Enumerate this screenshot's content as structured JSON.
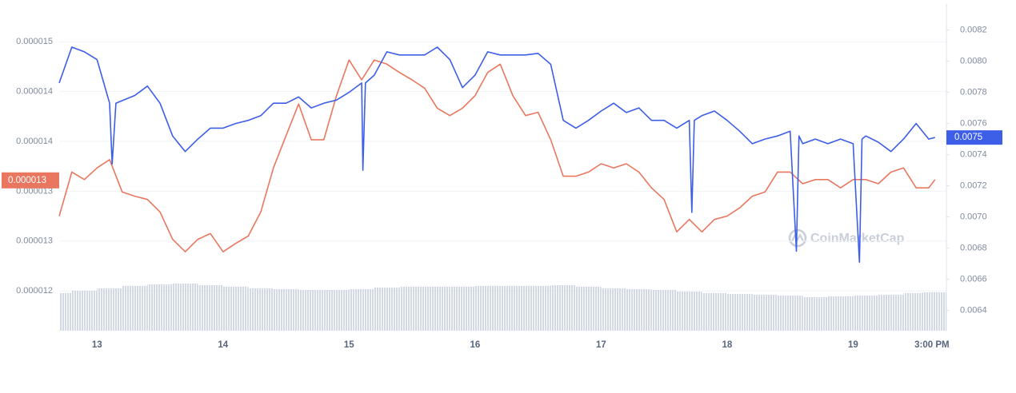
{
  "chart_data": {
    "type": "line",
    "xlim": [
      12.7,
      19.74
    ],
    "xticks": [
      13,
      14,
      15,
      16,
      17,
      18,
      19,
      {
        "value": 19.625,
        "label": "3:00 PM"
      }
    ],
    "ylim": [
      1.152e-05,
      1.531e-05
    ],
    "yticks": [
      1.5e-05,
      {
        "value": 1.44e-05,
        "label": "0.000014"
      },
      {
        "value": 1.38e-05,
        "label": "0.000014"
      },
      {
        "value": 1.32e-05,
        "label": "0.000013"
      },
      {
        "value": 1.26e-05,
        "label": "0.000013"
      },
      1.2e-05
    ],
    "y2lim": [
      0.00627,
      0.00829
    ],
    "y2ticks": [
      0.0082,
      {
        "value": 0.008,
        "label": "0.0080"
      },
      0.0078,
      0.0076,
      0.0074,
      0.0072,
      {
        "value": 0.007,
        "label": "0.0070"
      },
      0.0068,
      0.0066,
      0.0064
    ],
    "grid": true,
    "watermark": "CoinMarketCap",
    "series": [
      {
        "color": "#e9775f",
        "last_label": "0.000013",
        "x": [
          12.7,
          12.8,
          12.9,
          13.0,
          13.1,
          13.2,
          13.3,
          13.4,
          13.5,
          13.6,
          13.7,
          13.8,
          13.9,
          14.0,
          14.1,
          14.2,
          14.3,
          14.4,
          14.5,
          14.6,
          14.7,
          14.8,
          14.9,
          15.0,
          15.1,
          15.2,
          15.3,
          15.4,
          15.5,
          15.6,
          15.7,
          15.8,
          15.9,
          16.0,
          16.1,
          16.2,
          16.3,
          16.4,
          16.5,
          16.6,
          16.7,
          16.8,
          16.9,
          17.0,
          17.1,
          17.2,
          17.3,
          17.4,
          17.5,
          17.6,
          17.7,
          17.8,
          17.9,
          18.0,
          18.1,
          18.2,
          18.3,
          18.4,
          18.5,
          18.6,
          18.7,
          18.8,
          18.9,
          19.0,
          19.1,
          19.2,
          19.3,
          19.4,
          19.5,
          19.6,
          19.65
        ],
        "values": [
          1.29e-05,
          1.343e-05,
          1.334e-05,
          1.348e-05,
          1.358e-05,
          1.319e-05,
          1.314e-05,
          1.31e-05,
          1.295e-05,
          1.262e-05,
          1.247e-05,
          1.262e-05,
          1.269e-05,
          1.247e-05,
          1.257e-05,
          1.266e-05,
          1.295e-05,
          1.348e-05,
          1.387e-05,
          1.425e-05,
          1.382e-05,
          1.382e-05,
          1.435e-05,
          1.478e-05,
          1.454e-05,
          1.478e-05,
          1.473e-05,
          1.463e-05,
          1.454e-05,
          1.444e-05,
          1.42e-05,
          1.411e-05,
          1.42e-05,
          1.435e-05,
          1.463e-05,
          1.473e-05,
          1.435e-05,
          1.411e-05,
          1.415e-05,
          1.382e-05,
          1.338e-05,
          1.338e-05,
          1.343e-05,
          1.353e-05,
          1.348e-05,
          1.353e-05,
          1.343e-05,
          1.324e-05,
          1.31e-05,
          1.271e-05,
          1.286e-05,
          1.271e-05,
          1.286e-05,
          1.29e-05,
          1.3e-05,
          1.314e-05,
          1.319e-05,
          1.343e-05,
          1.343e-05,
          1.329e-05,
          1.334e-05,
          1.334e-05,
          1.324e-05,
          1.334e-05,
          1.334e-05,
          1.329e-05,
          1.343e-05,
          1.348e-05,
          1.324e-05,
          1.324e-05,
          1.334e-05
        ]
      },
      {
        "color": "#3d5ee6",
        "axis": "y2",
        "last_label": "0.0075",
        "x": [
          12.7,
          12.8,
          12.9,
          13.0,
          13.1,
          13.12,
          13.15,
          13.3,
          13.4,
          13.5,
          13.6,
          13.7,
          13.8,
          13.9,
          14.0,
          14.1,
          14.2,
          14.3,
          14.4,
          14.5,
          14.6,
          14.7,
          14.8,
          14.9,
          15.0,
          15.1,
          15.11,
          15.13,
          15.2,
          15.3,
          15.4,
          15.5,
          15.6,
          15.7,
          15.8,
          15.9,
          16.0,
          16.1,
          16.2,
          16.3,
          16.4,
          16.5,
          16.6,
          16.7,
          16.8,
          16.9,
          17.0,
          17.1,
          17.2,
          17.3,
          17.4,
          17.5,
          17.6,
          17.7,
          17.72,
          17.74,
          17.8,
          17.9,
          18.0,
          18.1,
          18.2,
          18.3,
          18.4,
          18.5,
          18.55,
          18.57,
          18.6,
          18.7,
          18.8,
          18.9,
          19.0,
          19.05,
          19.07,
          19.1,
          19.2,
          19.3,
          19.4,
          19.5,
          19.6,
          19.65
        ],
        "values": [
          0.00786,
          0.00809,
          0.00806,
          0.00801,
          0.00773,
          0.00734,
          0.00773,
          0.00778,
          0.00784,
          0.00773,
          0.00752,
          0.00742,
          0.0075,
          0.00757,
          0.00757,
          0.0076,
          0.00762,
          0.00765,
          0.00773,
          0.00773,
          0.00777,
          0.0077,
          0.00773,
          0.00775,
          0.0078,
          0.00786,
          0.0073,
          0.00786,
          0.00791,
          0.00806,
          0.00804,
          0.00804,
          0.00804,
          0.00809,
          0.00801,
          0.00783,
          0.00791,
          0.00806,
          0.00804,
          0.00804,
          0.00804,
          0.00805,
          0.00798,
          0.00762,
          0.00757,
          0.00762,
          0.00768,
          0.00773,
          0.00767,
          0.0077,
          0.00762,
          0.00762,
          0.00757,
          0.00762,
          0.00703,
          0.00762,
          0.00765,
          0.00768,
          0.00762,
          0.00755,
          0.00747,
          0.0075,
          0.00752,
          0.00755,
          0.00678,
          0.00752,
          0.00747,
          0.0075,
          0.00747,
          0.0075,
          0.00747,
          0.00671,
          0.0075,
          0.00752,
          0.00748,
          0.00742,
          0.0075,
          0.0076,
          0.0075,
          0.00751
        ]
      }
    ],
    "volume": {
      "type": "bar",
      "color": "#d3d8e5",
      "x": [
        12.7,
        12.9,
        13.1,
        13.3,
        13.5,
        13.7,
        13.9,
        14.1,
        14.3,
        14.5,
        14.7,
        14.9,
        15.1,
        15.3,
        15.5,
        15.7,
        15.9,
        16.1,
        16.3,
        16.5,
        16.7,
        16.9,
        17.1,
        17.3,
        17.5,
        17.7,
        17.9,
        18.1,
        18.3,
        18.5,
        18.7,
        18.9,
        19.1,
        19.3,
        19.5,
        19.65
      ],
      "values": [
        47,
        50,
        53,
        56,
        58,
        59,
        57,
        55,
        53,
        52,
        51,
        51,
        52,
        54,
        55,
        55,
        55,
        56,
        56,
        56,
        57,
        55,
        53,
        52,
        51,
        49,
        47,
        46,
        45,
        44,
        42,
        43,
        44,
        45,
        47,
        48
      ]
    }
  }
}
